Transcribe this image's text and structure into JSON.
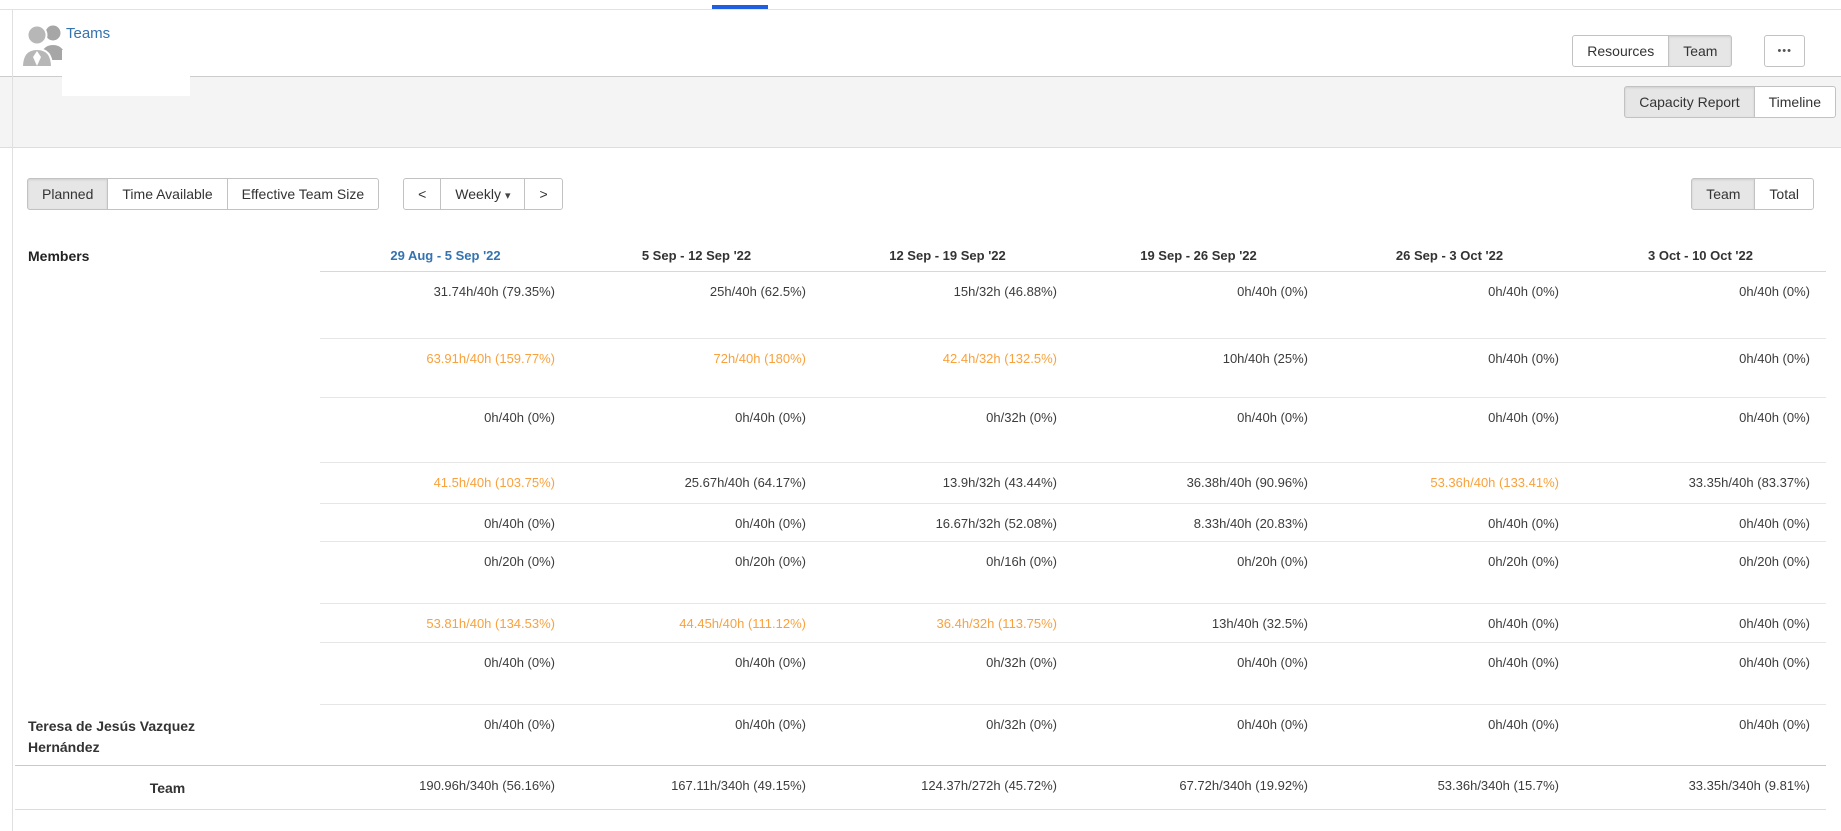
{
  "header": {
    "title": "Teams",
    "view_switch": {
      "resources": "Resources",
      "team": "Team"
    },
    "more_label": "•••",
    "tabs": {
      "capacity_report": "Capacity Report",
      "timeline": "Timeline"
    }
  },
  "toolbar": {
    "metrics": {
      "planned": "Planned",
      "time_available": "Time Available",
      "effective_team_size": "Effective Team Size"
    },
    "period_nav": {
      "prev": "<",
      "label": "Weekly",
      "caret": "▾",
      "next": ">"
    },
    "scope": {
      "team": "Team",
      "total": "Total"
    }
  },
  "table": {
    "members_label": "Members",
    "week_columns": [
      "29 Aug - 5 Sep '22",
      "5 Sep - 12 Sep '22",
      "12 Sep - 19 Sep '22",
      "19 Sep - 26 Sep '22",
      "26 Sep - 3 Oct '22",
      "3 Oct - 10 Oct '22"
    ],
    "current_week_index": 0,
    "rows": [
      {
        "member": "",
        "cells": [
          {
            "value": "31.74h/40h (79.35%)",
            "over_capacity": false
          },
          {
            "value": "25h/40h (62.5%)",
            "over_capacity": false
          },
          {
            "value": "15h/32h (46.88%)",
            "over_capacity": false
          },
          {
            "value": "0h/40h (0%)",
            "over_capacity": false
          },
          {
            "value": "0h/40h (0%)",
            "over_capacity": false
          },
          {
            "value": "0h/40h (0%)",
            "over_capacity": false
          }
        ]
      },
      {
        "member": "",
        "cells": [
          {
            "value": "63.91h/40h (159.77%)",
            "over_capacity": true
          },
          {
            "value": "72h/40h (180%)",
            "over_capacity": true
          },
          {
            "value": "42.4h/32h (132.5%)",
            "over_capacity": true
          },
          {
            "value": "10h/40h (25%)",
            "over_capacity": false
          },
          {
            "value": "0h/40h (0%)",
            "over_capacity": false
          },
          {
            "value": "0h/40h (0%)",
            "over_capacity": false
          }
        ]
      },
      {
        "member": "",
        "cells": [
          {
            "value": "0h/40h (0%)",
            "over_capacity": false
          },
          {
            "value": "0h/40h (0%)",
            "over_capacity": false
          },
          {
            "value": "0h/32h (0%)",
            "over_capacity": false
          },
          {
            "value": "0h/40h (0%)",
            "over_capacity": false
          },
          {
            "value": "0h/40h (0%)",
            "over_capacity": false
          },
          {
            "value": "0h/40h (0%)",
            "over_capacity": false
          }
        ]
      },
      {
        "member": "",
        "cells": [
          {
            "value": "41.5h/40h (103.75%)",
            "over_capacity": true
          },
          {
            "value": "25.67h/40h (64.17%)",
            "over_capacity": false
          },
          {
            "value": "13.9h/32h (43.44%)",
            "over_capacity": false
          },
          {
            "value": "36.38h/40h (90.96%)",
            "over_capacity": false
          },
          {
            "value": "53.36h/40h (133.41%)",
            "over_capacity": true
          },
          {
            "value": "33.35h/40h (83.37%)",
            "over_capacity": false
          }
        ]
      },
      {
        "member": "",
        "cells": [
          {
            "value": "0h/40h (0%)",
            "over_capacity": false
          },
          {
            "value": "0h/40h (0%)",
            "over_capacity": false
          },
          {
            "value": "16.67h/32h (52.08%)",
            "over_capacity": false
          },
          {
            "value": "8.33h/40h (20.83%)",
            "over_capacity": false
          },
          {
            "value": "0h/40h (0%)",
            "over_capacity": false
          },
          {
            "value": "0h/40h (0%)",
            "over_capacity": false
          }
        ]
      },
      {
        "member": "",
        "cells": [
          {
            "value": "0h/20h (0%)",
            "over_capacity": false
          },
          {
            "value": "0h/20h (0%)",
            "over_capacity": false
          },
          {
            "value": "0h/16h (0%)",
            "over_capacity": false
          },
          {
            "value": "0h/20h (0%)",
            "over_capacity": false
          },
          {
            "value": "0h/20h (0%)",
            "over_capacity": false
          },
          {
            "value": "0h/20h (0%)",
            "over_capacity": false
          }
        ]
      },
      {
        "member": "",
        "cells": [
          {
            "value": "53.81h/40h (134.53%)",
            "over_capacity": true
          },
          {
            "value": "44.45h/40h (111.12%)",
            "over_capacity": true
          },
          {
            "value": "36.4h/32h (113.75%)",
            "over_capacity": true
          },
          {
            "value": "13h/40h (32.5%)",
            "over_capacity": false
          },
          {
            "value": "0h/40h (0%)",
            "over_capacity": false
          },
          {
            "value": "0h/40h (0%)",
            "over_capacity": false
          }
        ]
      },
      {
        "member": "",
        "cells": [
          {
            "value": "0h/40h (0%)",
            "over_capacity": false
          },
          {
            "value": "0h/40h (0%)",
            "over_capacity": false
          },
          {
            "value": "0h/32h (0%)",
            "over_capacity": false
          },
          {
            "value": "0h/40h (0%)",
            "over_capacity": false
          },
          {
            "value": "0h/40h (0%)",
            "over_capacity": false
          },
          {
            "value": "0h/40h (0%)",
            "over_capacity": false
          }
        ]
      },
      {
        "member": "Teresa de Jesús Vazquez Hernández",
        "cells": [
          {
            "value": "0h/40h (0%)",
            "over_capacity": false
          },
          {
            "value": "0h/40h (0%)",
            "over_capacity": false
          },
          {
            "value": "0h/32h (0%)",
            "over_capacity": false
          },
          {
            "value": "0h/40h (0%)",
            "over_capacity": false
          },
          {
            "value": "0h/40h (0%)",
            "over_capacity": false
          },
          {
            "value": "0h/40h (0%)",
            "over_capacity": false
          }
        ]
      }
    ],
    "total_row": {
      "label": "Team",
      "cells": [
        {
          "value": "190.96h/340h (56.16%)",
          "over_capacity": false
        },
        {
          "value": "167.11h/340h (49.15%)",
          "over_capacity": false
        },
        {
          "value": "124.37h/272h (45.72%)",
          "over_capacity": false
        },
        {
          "value": "67.72h/340h (19.92%)",
          "over_capacity": false
        },
        {
          "value": "53.36h/340h (15.7%)",
          "over_capacity": false
        },
        {
          "value": "33.35h/340h (9.81%)",
          "over_capacity": false
        }
      ]
    }
  },
  "colors": {
    "link_blue": "#3572b0",
    "over_capacity_orange": "#f9a13c",
    "selected_button_bg": "#e6e6e6",
    "subnav_band": "#f4f4f4"
  }
}
